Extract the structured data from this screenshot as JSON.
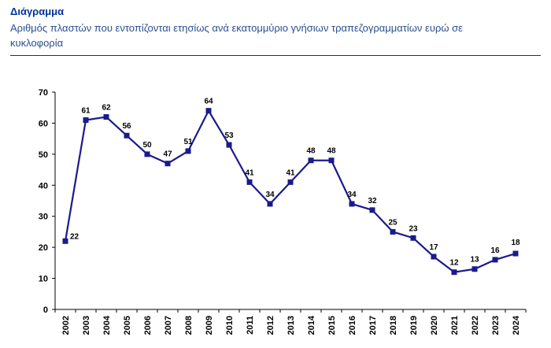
{
  "header": {
    "title": "Διάγραμμα",
    "subtitle": "Αριθμός πλαστών που εντοπίζονται ετησίως ανά εκατομμύριο γνήσιων τραπεζογραμματίων ευρώ σε κυκλοφορία"
  },
  "colors": {
    "accent": "#003399",
    "series": "#1a1a8c",
    "rule": "#003399"
  },
  "chart_data": {
    "type": "line",
    "title": "",
    "xlabel": "",
    "ylabel": "",
    "x": [
      "2002",
      "2003",
      "2004",
      "2005",
      "2006",
      "2007",
      "2008",
      "2009",
      "2010",
      "2011",
      "2012",
      "2013",
      "2014",
      "2015",
      "2016",
      "2017",
      "2018",
      "2019",
      "2020",
      "2021",
      "2022",
      "2023",
      "2024"
    ],
    "values": [
      22,
      61,
      62,
      56,
      50,
      47,
      51,
      64,
      53,
      41,
      34,
      41,
      48,
      48,
      34,
      32,
      25,
      23,
      17,
      12,
      13,
      16,
      18
    ],
    "labels": [
      "22",
      "61",
      "62",
      "56",
      "50",
      "47",
      "51",
      "64",
      "53",
      "41",
      "34",
      "41",
      "48",
      "48",
      "34",
      "32",
      "25",
      "23",
      "17",
      "12",
      "13",
      "16",
      "18"
    ],
    "ylim": [
      0,
      70
    ],
    "yticks": [
      0,
      10,
      20,
      30,
      40,
      50,
      60,
      70
    ],
    "grid": false,
    "marker": "square"
  }
}
